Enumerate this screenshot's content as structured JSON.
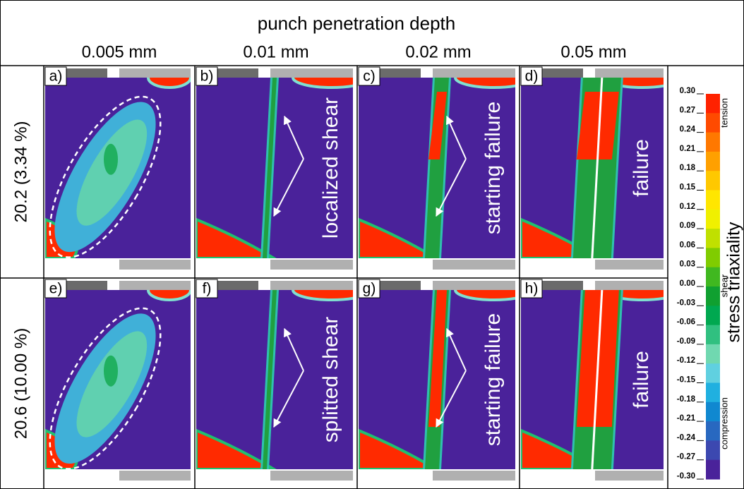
{
  "header": {
    "title": "punch penetration depth",
    "columns": [
      "0.005 mm",
      "0.01 mm",
      "0.02 mm",
      "0.05 mm"
    ]
  },
  "rows": [
    "20.2 (3.34 %)",
    "20.6 (10.00 %)"
  ],
  "panels": [
    {
      "label": "a)"
    },
    {
      "label": "b)",
      "annotation": "localized shear"
    },
    {
      "label": "c)",
      "annotation": "starting failure"
    },
    {
      "label": "d)",
      "annotation": "failure"
    },
    {
      "label": "e)"
    },
    {
      "label": "f)",
      "annotation": "splitted shear"
    },
    {
      "label": "g)",
      "annotation": "starting failure"
    },
    {
      "label": "h)",
      "annotation": "failure"
    }
  ],
  "colorbar": {
    "title": "stress triaxiality",
    "ticks": [
      "0.30",
      "0.27",
      "0.24",
      "0.21",
      "0.18",
      "0.15",
      "0.12",
      "0.09",
      "0.06",
      "0.03",
      "0.00",
      "-0.03",
      "-0.06",
      "-0.09",
      "-0.12",
      "-0.15",
      "-0.18",
      "-0.21",
      "-0.24",
      "-0.27",
      "-0.30"
    ],
    "regions": [
      "tension",
      "shear",
      "compression"
    ]
  }
}
